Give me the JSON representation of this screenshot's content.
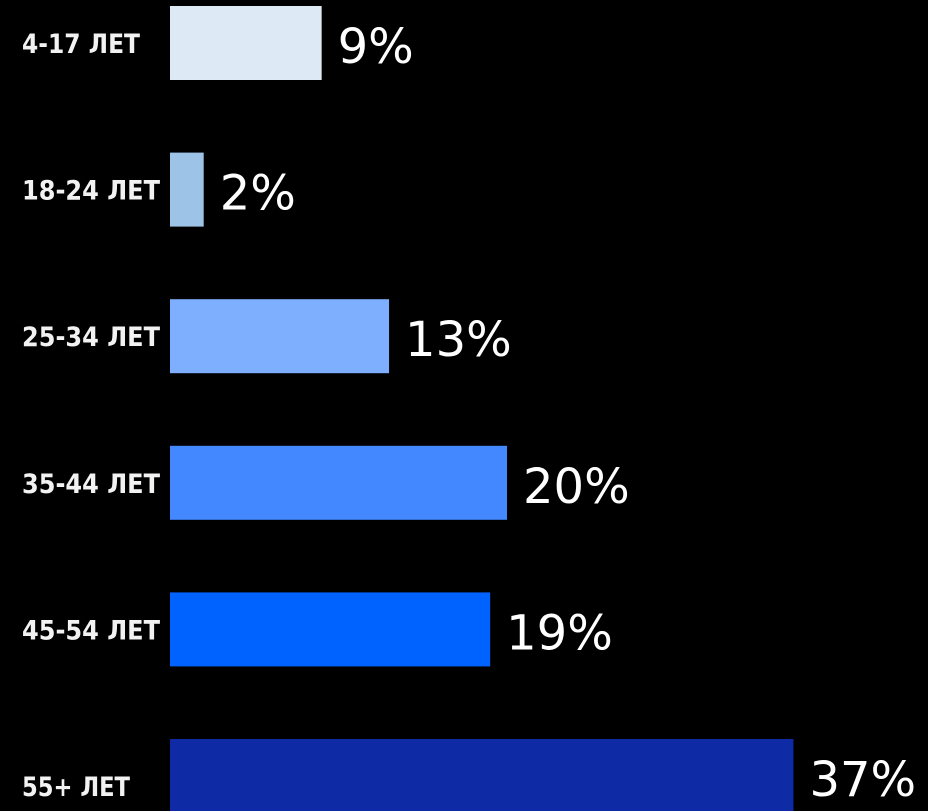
{
  "chart_data": {
    "type": "bar",
    "orientation": "horizontal",
    "categories": [
      "4-17 ЛЕТ",
      "18-24 ЛЕТ",
      "25-34 ЛЕТ",
      "35-44 ЛЕТ",
      "45-54 ЛЕТ",
      "55+ ЛЕТ"
    ],
    "values": [
      9,
      2,
      13,
      20,
      19,
      37
    ],
    "value_labels": [
      "9%",
      "2%",
      "13%",
      "20%",
      "19%",
      "37%"
    ],
    "unit": "%",
    "colors": [
      "#dde9f5",
      "#9dc3e6",
      "#7eaefe",
      "#4388ff",
      "#0062ff",
      "#0f2aa5"
    ],
    "title": "",
    "xlabel": "",
    "ylabel": "",
    "grid": false,
    "legend": "none",
    "background": "#000000"
  }
}
